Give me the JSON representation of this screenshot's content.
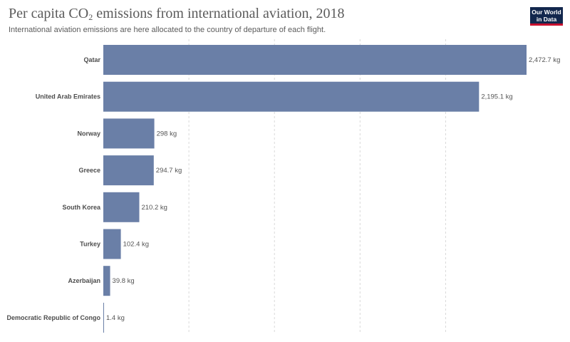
{
  "header": {
    "title_main": "Per capita CO",
    "title_sub": "2",
    "title_rest": " emissions from international aviation, 2018",
    "subtitle": "International aviation emissions are here allocated to the country of departure of each flight."
  },
  "logo": {
    "line1": "Our World",
    "line2": "in Data"
  },
  "colors": {
    "bar": "#6a7fa7",
    "grid": "#d9d9d9"
  },
  "chart_data": {
    "type": "bar",
    "orientation": "horizontal",
    "title": "Per capita CO₂ emissions from international aviation, 2018",
    "subtitle": "International aviation emissions are here allocated to the country of departure of each flight.",
    "unit": "kg",
    "categories": [
      "Qatar",
      "United Arab Emirates",
      "Norway",
      "Greece",
      "South Korea",
      "Turkey",
      "Azerbaijan",
      "Democratic Republic of Congo"
    ],
    "values": [
      2472.7,
      2195.1,
      298,
      294.7,
      210.2,
      102.4,
      39.8,
      1.4
    ],
    "value_labels": [
      "2,472.7 kg",
      "2,195.1 kg",
      "298 kg",
      "294.7 kg",
      "210.2 kg",
      "102.4 kg",
      "39.8 kg",
      "1.4 kg"
    ],
    "xlim": [
      0,
      2472.7
    ],
    "grid": true
  }
}
